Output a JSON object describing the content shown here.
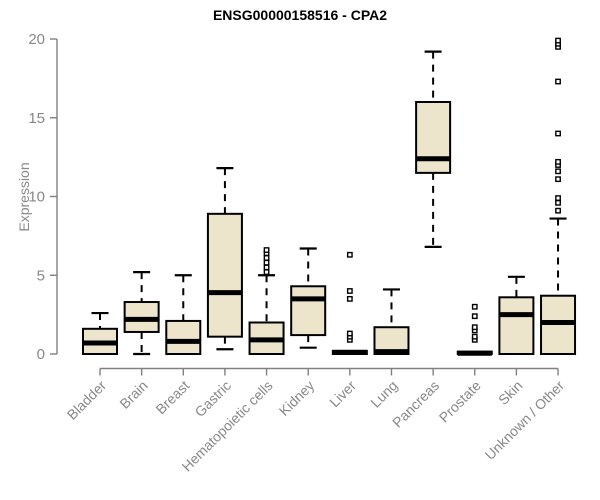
{
  "title": "ENSG00000158516 - CPA2",
  "chart_data": {
    "type": "boxplot",
    "title": "ENSG00000158516 - CPA2",
    "ylabel": "Expression",
    "xlabel": "",
    "ylim": [
      0,
      20
    ],
    "yticks": [
      0,
      5,
      10,
      15,
      20
    ],
    "grid": false,
    "legend": "none",
    "categories": [
      "Bladder",
      "Brain",
      "Breast",
      "Gastric",
      "Hematopoietic cells",
      "Kidney",
      "Liver",
      "Lung",
      "Pancreas",
      "Prostate",
      "Skin",
      "Unknown / Other"
    ],
    "boxes": [
      {
        "category": "Bladder",
        "low": 0,
        "q1": 0,
        "median": 0.7,
        "q3": 1.6,
        "high": 2.6,
        "outliers": []
      },
      {
        "category": "Brain",
        "low": 0,
        "q1": 1.4,
        "median": 2.2,
        "q3": 3.3,
        "high": 5.2,
        "outliers": []
      },
      {
        "category": "Breast",
        "low": 0,
        "q1": 0,
        "median": 0.8,
        "q3": 2.1,
        "high": 5.0,
        "outliers": []
      },
      {
        "category": "Gastric",
        "low": 0.3,
        "q1": 1.1,
        "median": 3.9,
        "q3": 8.9,
        "high": 11.8,
        "outliers": []
      },
      {
        "category": "Hematopoietic cells",
        "low": 0,
        "q1": 0,
        "median": 0.9,
        "q3": 2.0,
        "high": 5.0,
        "outliers": [
          5.2,
          5.5,
          5.8,
          6.1,
          6.4,
          6.6
        ]
      },
      {
        "category": "Kidney",
        "low": 0.4,
        "q1": 1.2,
        "median": 3.5,
        "q3": 4.3,
        "high": 6.7,
        "outliers": []
      },
      {
        "category": "Liver",
        "low": 0,
        "q1": 0,
        "median": 0.1,
        "q3": 0.2,
        "high": 0.2,
        "outliers": [
          0.9,
          1.1,
          1.3,
          3.5,
          4.0,
          6.3
        ]
      },
      {
        "category": "Lung",
        "low": 0,
        "q1": 0,
        "median": 0.15,
        "q3": 1.7,
        "high": 4.1,
        "outliers": []
      },
      {
        "category": "Pancreas",
        "low": 6.8,
        "q1": 11.5,
        "median": 12.4,
        "q3": 16.0,
        "high": 19.2,
        "outliers": []
      },
      {
        "category": "Prostate",
        "low": 0,
        "q1": 0,
        "median": 0.05,
        "q3": 0.15,
        "high": 0.15,
        "outliers": [
          0.9,
          1.1,
          1.5,
          1.7,
          2.4,
          3.0
        ]
      },
      {
        "category": "Skin",
        "low": 0,
        "q1": 0,
        "median": 2.5,
        "q3": 3.6,
        "high": 4.9,
        "outliers": []
      },
      {
        "category": "Unknown / Other",
        "low": 0,
        "q1": 0,
        "median": 2.0,
        "q3": 3.7,
        "high": 8.6,
        "outliers": [
          9.1,
          9.6,
          9.9,
          11.1,
          11.6,
          12.0,
          12.2,
          14.0,
          17.3,
          19.5,
          19.7,
          19.9
        ]
      }
    ],
    "colors": {
      "box_fill": "#ece5cb",
      "box_border": "#000000",
      "median": "#000000",
      "whisker": "#000000",
      "outlier": "#000000",
      "axis": "#808080",
      "tick_label": "#888888",
      "title": "#000000",
      "background": "#ffffff"
    }
  }
}
